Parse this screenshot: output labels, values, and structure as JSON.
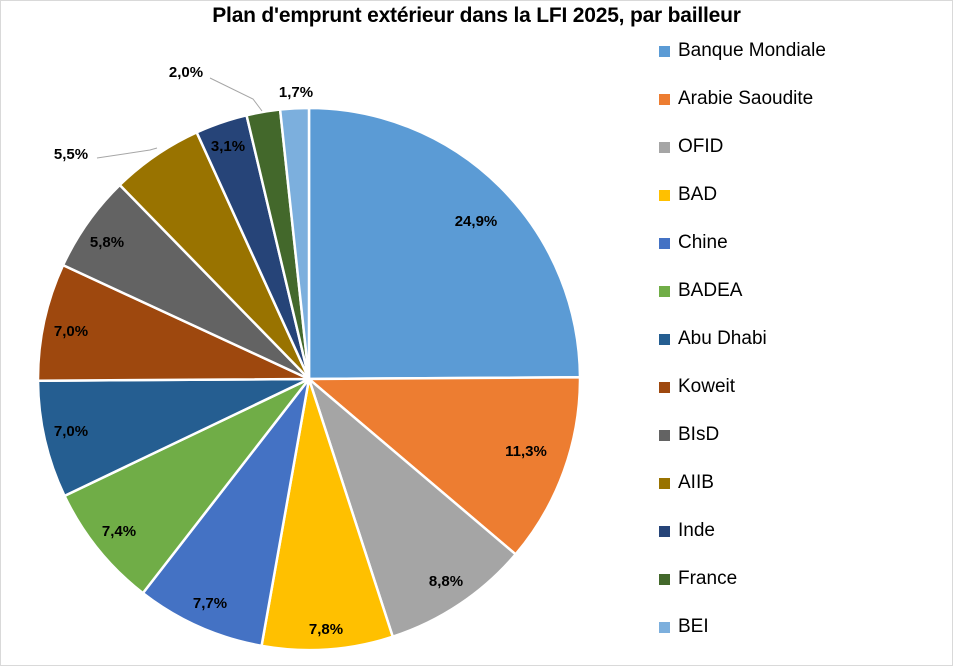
{
  "chart_data": {
    "type": "pie",
    "title": "Plan d'emprunt extérieur dans la LFI 2025, par bailleur",
    "start_angle": "12 o'clock, clockwise",
    "legend_position": "right",
    "categories": [
      "Banque Mondiale",
      "Arabie Saoudite",
      "OFID",
      "BAD",
      "Chine",
      "BADEA",
      "Abu Dhabi",
      "Koweit",
      "BIsD",
      "AIIB",
      "Inde",
      "France",
      "BEI"
    ],
    "values": [
      24.9,
      11.3,
      8.8,
      7.8,
      7.7,
      7.4,
      7.0,
      7.0,
      5.8,
      5.5,
      3.1,
      2.0,
      1.7
    ],
    "labels": [
      "24,9%",
      "11,3%",
      "8,8%",
      "7,8%",
      "7,7%",
      "7,4%",
      "7,0%",
      "7,0%",
      "5,8%",
      "5,5%",
      "3,1%",
      "2,0%",
      "1,7%"
    ],
    "colors": [
      "#5b9bd5",
      "#ed7d31",
      "#a5a5a5",
      "#ffc000",
      "#4472c4",
      "#70ad47",
      "#255e91",
      "#9e480e",
      "#636363",
      "#997300",
      "#264478",
      "#43682b",
      "#7cafdd"
    ],
    "unit": "%"
  },
  "legend": [
    {
      "label": "Banque Mondiale",
      "color": "#5b9bd5"
    },
    {
      "label": "Arabie Saoudite",
      "color": "#ed7d31"
    },
    {
      "label": "OFID",
      "color": "#a5a5a5"
    },
    {
      "label": "BAD",
      "color": "#ffc000"
    },
    {
      "label": "Chine",
      "color": "#4472c4"
    },
    {
      "label": "BADEA",
      "color": "#70ad47"
    },
    {
      "label": "Abu Dhabi",
      "color": "#255e91"
    },
    {
      "label": "Koweit",
      "color": "#9e480e"
    },
    {
      "label": "BIsD",
      "color": "#636363"
    },
    {
      "label": "AIIB",
      "color": "#997300"
    },
    {
      "label": "Inde",
      "color": "#264478"
    },
    {
      "label": "France",
      "color": "#43682b"
    },
    {
      "label": "BEI",
      "color": "#7cafdd"
    }
  ]
}
